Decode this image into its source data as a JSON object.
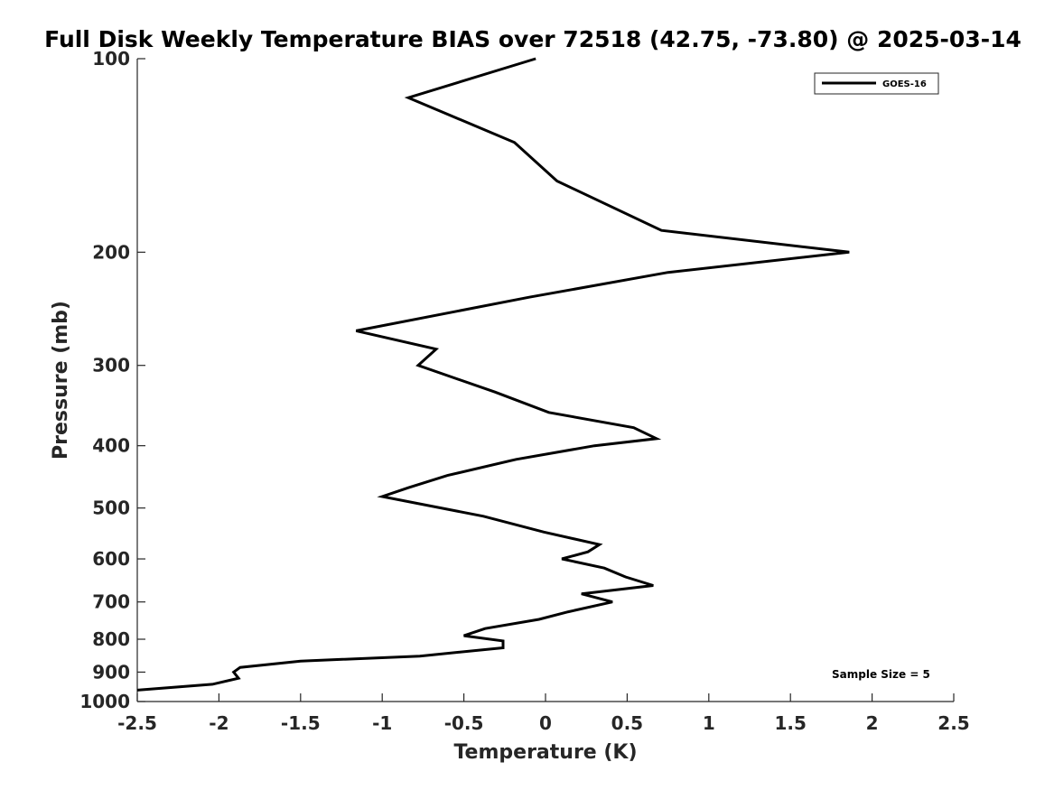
{
  "chart_data": {
    "type": "line",
    "title": "Full Disk Weekly Temperature BIAS over 72518 (42.75, -73.80) @ 2025-03-14",
    "xlabel": "Temperature (K)",
    "ylabel": "Pressure (mb)",
    "xlim": [
      -2.5,
      2.5
    ],
    "ylim": [
      100,
      1000
    ],
    "y_scale": "log",
    "y_reversed": true,
    "grid": false,
    "legend_position": "top-right",
    "x_ticks": [
      -2.5,
      -2,
      -1.5,
      -1,
      -0.5,
      0,
      0.5,
      1,
      1.5,
      2,
      2.5
    ],
    "x_tick_labels": [
      "-2.5",
      "-2",
      "-1.5",
      "-1",
      "-0.5",
      "0",
      "0.5",
      "1",
      "1.5",
      "2",
      "2.5"
    ],
    "y_ticks": [
      100,
      200,
      300,
      400,
      500,
      600,
      700,
      800,
      900,
      1000
    ],
    "y_tick_labels": [
      "100",
      "200",
      "300",
      "400",
      "500",
      "600",
      "700",
      "800",
      "900",
      "1000"
    ],
    "series": [
      {
        "name": "GOES-16",
        "color": "#000000",
        "points": [
          {
            "x": -0.06,
            "y": 100
          },
          {
            "x": -0.84,
            "y": 115
          },
          {
            "x": -0.19,
            "y": 135
          },
          {
            "x": 0.07,
            "y": 155
          },
          {
            "x": 0.71,
            "y": 185
          },
          {
            "x": 1.86,
            "y": 200
          },
          {
            "x": 0.75,
            "y": 215
          },
          {
            "x": -0.1,
            "y": 235
          },
          {
            "x": -1.16,
            "y": 265
          },
          {
            "x": -0.67,
            "y": 283
          },
          {
            "x": -0.78,
            "y": 300
          },
          {
            "x": -0.31,
            "y": 330
          },
          {
            "x": 0.02,
            "y": 355
          },
          {
            "x": 0.54,
            "y": 375
          },
          {
            "x": 0.68,
            "y": 390
          },
          {
            "x": 0.3,
            "y": 400
          },
          {
            "x": -0.18,
            "y": 420
          },
          {
            "x": -0.6,
            "y": 445
          },
          {
            "x": -0.84,
            "y": 465
          },
          {
            "x": -1.0,
            "y": 480
          },
          {
            "x": -0.38,
            "y": 515
          },
          {
            "x": -0.01,
            "y": 545
          },
          {
            "x": 0.33,
            "y": 570
          },
          {
            "x": 0.26,
            "y": 585
          },
          {
            "x": 0.1,
            "y": 600
          },
          {
            "x": 0.36,
            "y": 620
          },
          {
            "x": 0.49,
            "y": 640
          },
          {
            "x": 0.66,
            "y": 660
          },
          {
            "x": 0.22,
            "y": 680
          },
          {
            "x": 0.41,
            "y": 700
          },
          {
            "x": 0.14,
            "y": 725
          },
          {
            "x": -0.04,
            "y": 745
          },
          {
            "x": -0.37,
            "y": 770
          },
          {
            "x": -0.5,
            "y": 790
          },
          {
            "x": -0.26,
            "y": 805
          },
          {
            "x": -0.26,
            "y": 825
          },
          {
            "x": -0.77,
            "y": 850
          },
          {
            "x": -1.5,
            "y": 865
          },
          {
            "x": -1.87,
            "y": 885
          },
          {
            "x": -1.91,
            "y": 900
          },
          {
            "x": -1.88,
            "y": 920
          },
          {
            "x": -2.04,
            "y": 940
          },
          {
            "x": -2.5,
            "y": 960
          }
        ]
      }
    ],
    "annotation": "Sample Size = 5"
  }
}
